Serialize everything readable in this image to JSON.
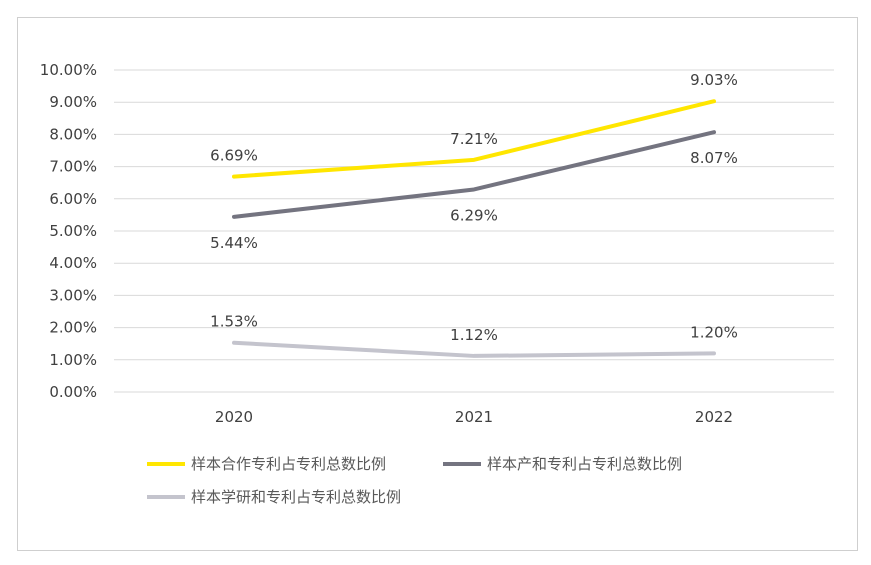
{
  "chart_data": {
    "type": "line",
    "x": [
      "2020",
      "2021",
      "2022"
    ],
    "ylim": [
      0,
      10
    ],
    "y_ticks": [
      "0.00%",
      "1.00%",
      "2.00%",
      "3.00%",
      "4.00%",
      "5.00%",
      "6.00%",
      "7.00%",
      "8.00%",
      "9.00%",
      "10.00%"
    ],
    "grid": true,
    "legend_position": "bottom",
    "series": [
      {
        "name": "样本合作专利占专利总数比例",
        "values": [
          6.69,
          7.21,
          9.03
        ],
        "labels": [
          "6.69%",
          "7.21%",
          "9.03%"
        ],
        "color": "#FFE600",
        "label_side": [
          "above",
          "above",
          "above"
        ]
      },
      {
        "name": "样本产和专利占专利总数比例",
        "values": [
          5.44,
          6.29,
          8.07
        ],
        "labels": [
          "5.44%",
          "6.29%",
          "8.07%"
        ],
        "color": "#747480",
        "label_side": [
          "below",
          "below",
          "below"
        ]
      },
      {
        "name": "样本学研和专利占专利总数比例",
        "values": [
          1.53,
          1.12,
          1.2
        ],
        "labels": [
          "1.53%",
          "1.12%",
          "1.20%"
        ],
        "color": "#C4C4CD",
        "label_side": [
          "above",
          "above",
          "above"
        ]
      }
    ]
  }
}
